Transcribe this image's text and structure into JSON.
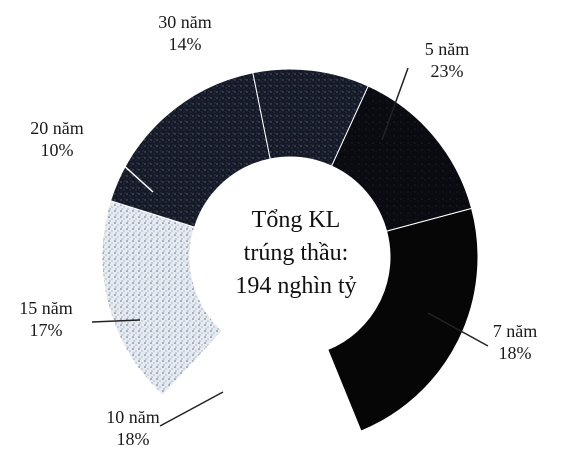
{
  "chart_data": {
    "type": "pie",
    "variant": "donut",
    "center_text": [
      "Tổng KL",
      "trúng thầu:",
      "194 nghìn tỷ"
    ],
    "slices": [
      {
        "label": "5 năm",
        "percent": 23,
        "percent_text": "23%",
        "color": "#060606",
        "texture": "solid"
      },
      {
        "label": "7 năm",
        "percent": 18,
        "percent_text": "18%",
        "color": "#ffffff",
        "texture": "none"
      },
      {
        "label": "10 năm",
        "percent": 18,
        "percent_text": "18%",
        "color": "#dfe4ec",
        "texture": "speckle-light"
      },
      {
        "label": "15 năm",
        "percent": 17,
        "percent_text": "17%",
        "color": "#1b1f2e",
        "texture": "speckle-dark"
      },
      {
        "label": "20 năm",
        "percent": 10,
        "percent_text": "10%",
        "color": "#1f2433",
        "texture": "speckle-dark"
      },
      {
        "label": "30 năm",
        "percent": 14,
        "percent_text": "14%",
        "color": "#0b0c12",
        "texture": "speckle-faint"
      }
    ],
    "legend": "none",
    "labels": "outside-with-leader-lines"
  }
}
